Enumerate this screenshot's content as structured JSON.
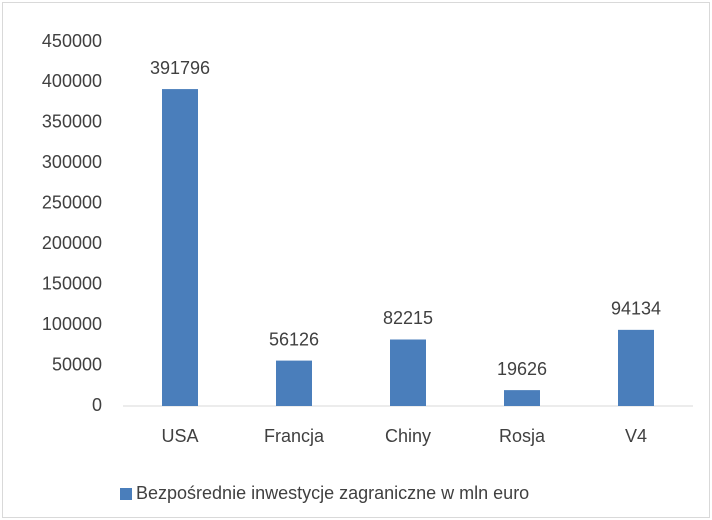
{
  "chart_data": {
    "type": "bar",
    "categories": [
      "USA",
      "Francja",
      "Chiny",
      "Rosja",
      "V4"
    ],
    "series": [
      {
        "name": "Bezpośrednie inwestycje zagraniczne w mln euro",
        "color": "#4a7ebb",
        "values": [
          391796,
          56126,
          82215,
          19626,
          94134
        ]
      }
    ],
    "ylim": [
      0,
      450000
    ],
    "yticks": [
      0,
      50000,
      100000,
      150000,
      200000,
      250000,
      300000,
      350000,
      400000,
      450000
    ],
    "grid": false,
    "legend": "bottom"
  }
}
